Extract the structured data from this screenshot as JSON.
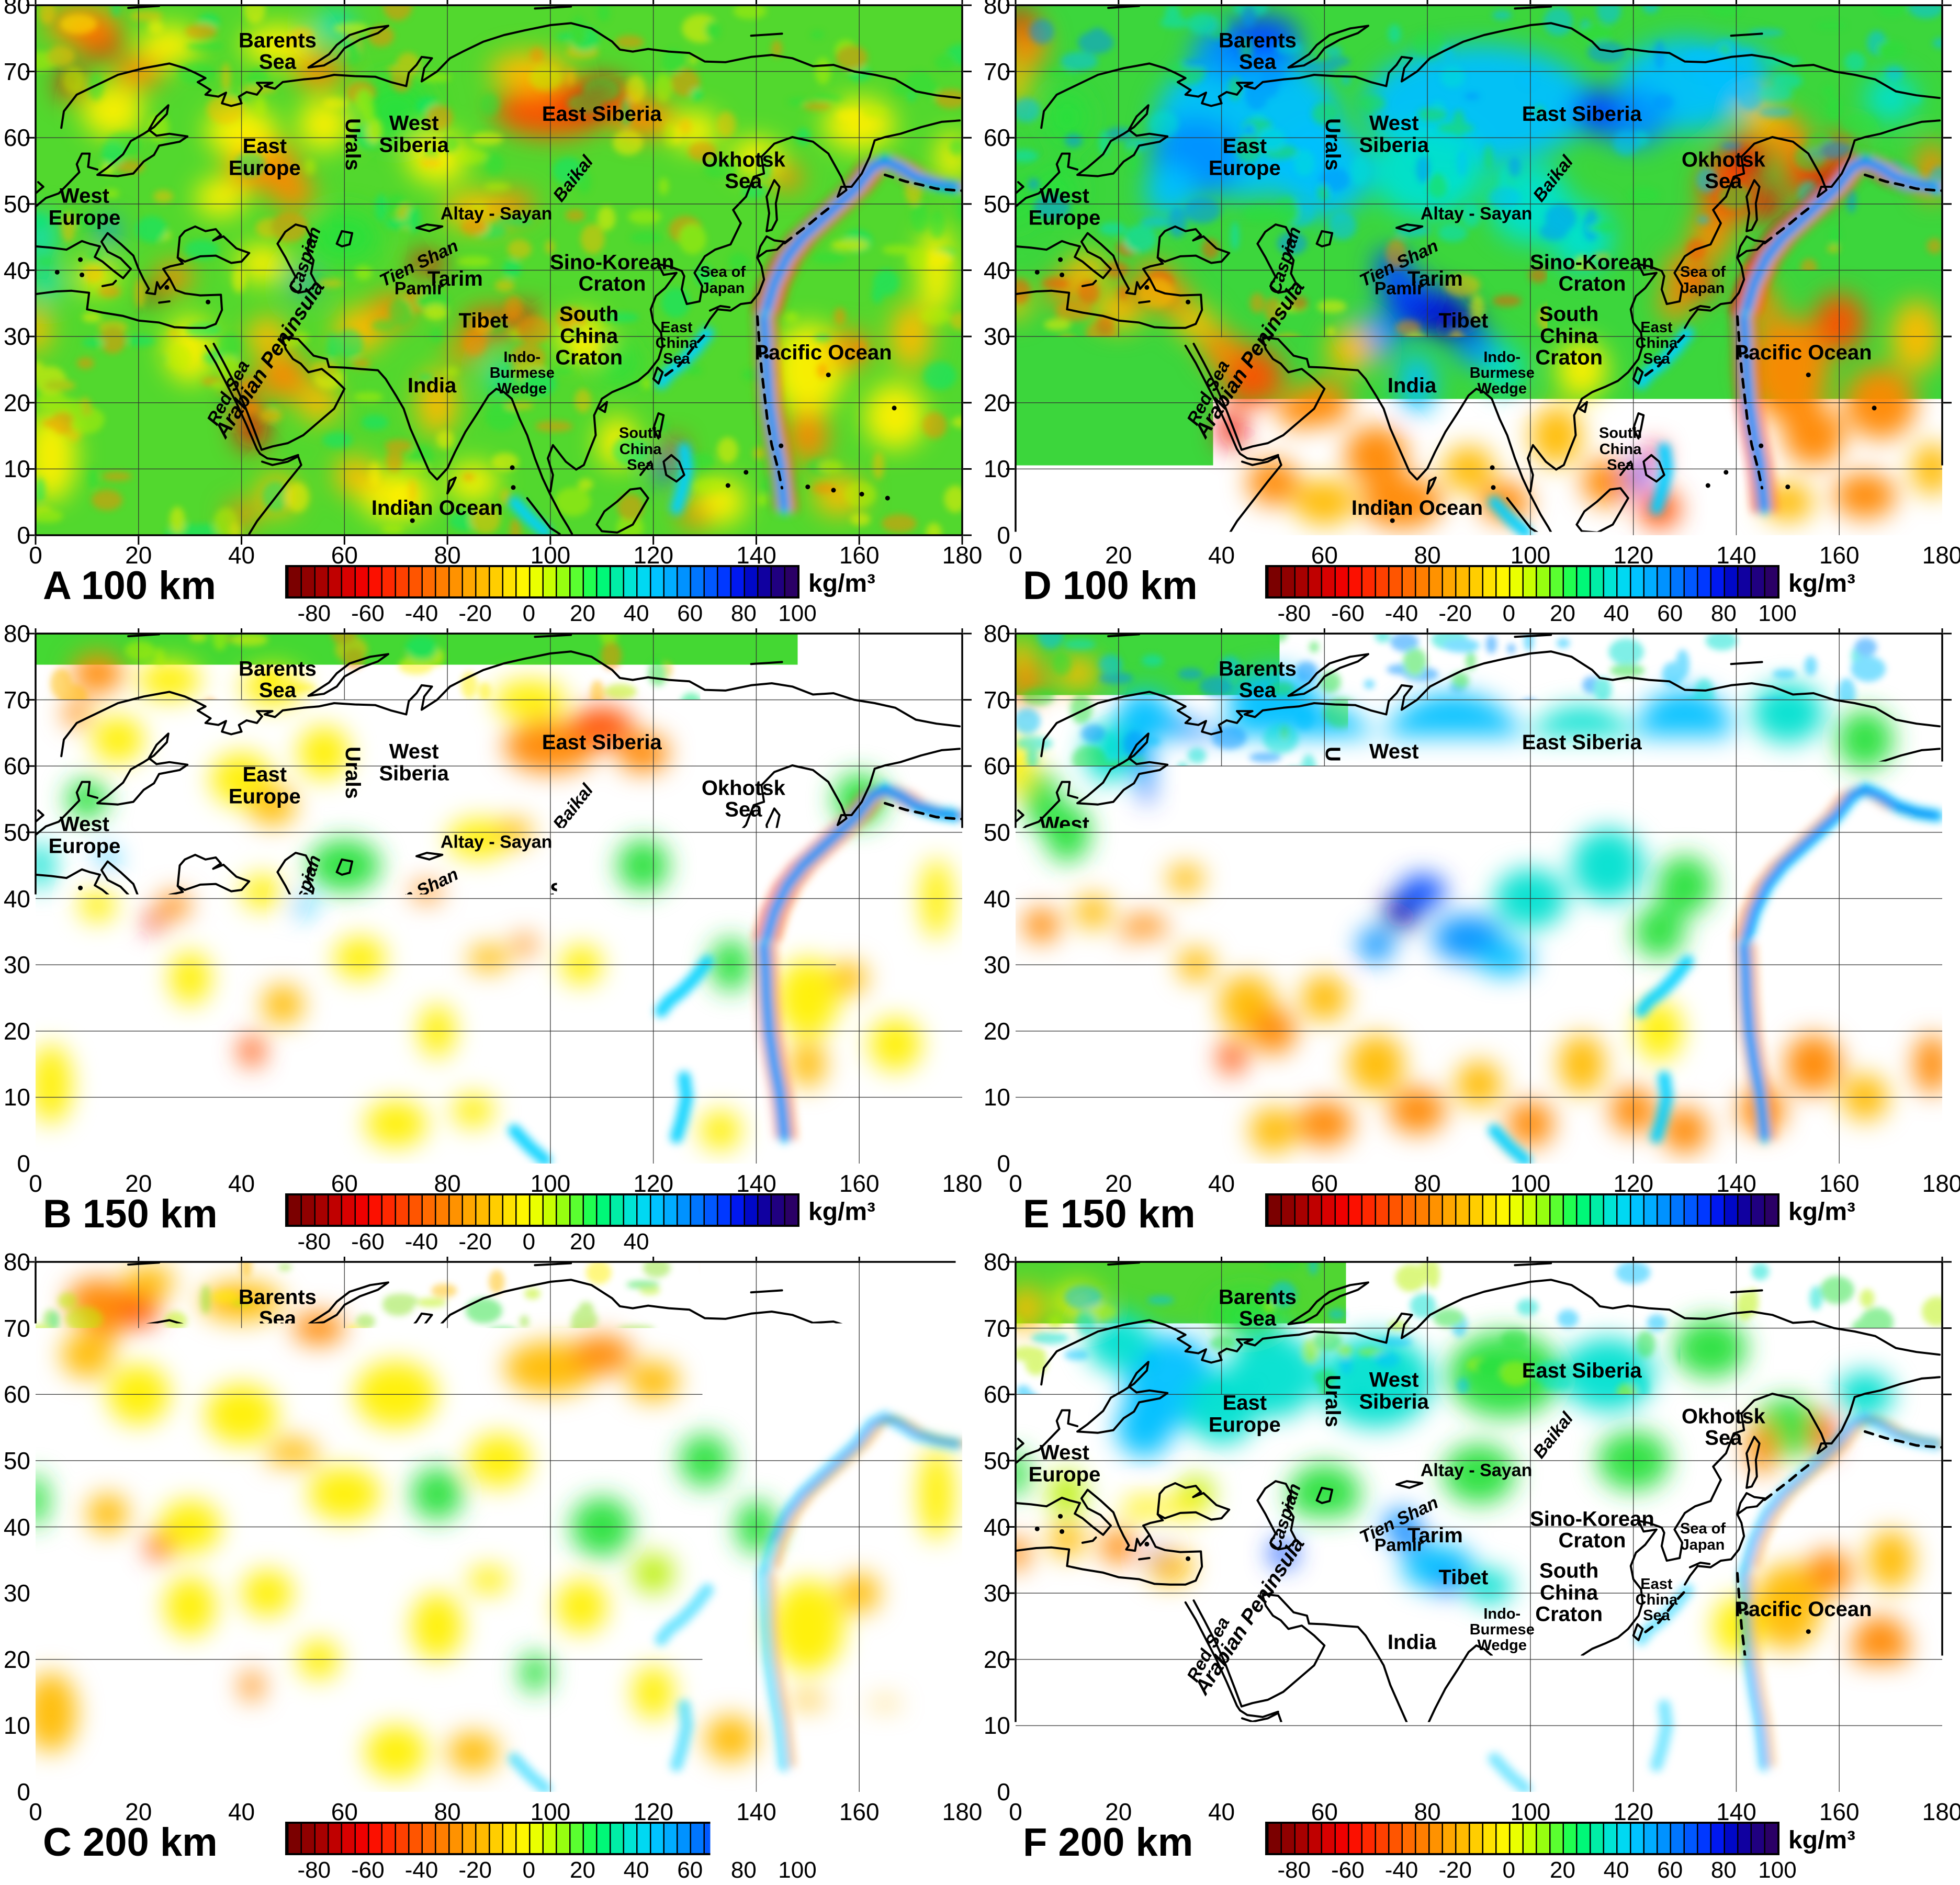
{
  "figure": {
    "unit_label": "kg/m³",
    "panels": [
      {
        "id": "A",
        "label": "A 100 km",
        "depth_km": 100
      },
      {
        "id": "D",
        "label": "D 100 km",
        "depth_km": 100
      },
      {
        "id": "B",
        "label": "B 150 km",
        "depth_km": 150
      },
      {
        "id": "E",
        "label": "E 150 km",
        "depth_km": 150
      },
      {
        "id": "C",
        "label": "C 200 km",
        "depth_km": 200
      },
      {
        "id": "F",
        "label": "F 200 km",
        "depth_km": 200
      }
    ],
    "axes": {
      "x_ticks": [
        "0",
        "20",
        "40",
        "60",
        "80",
        "100",
        "120",
        "140",
        "160",
        "180"
      ],
      "y_ticks": [
        "80",
        "70",
        "60",
        "50",
        "40",
        "30",
        "20",
        "10",
        "0"
      ]
    },
    "colorbar": {
      "tick_labels": [
        "-80",
        "-60",
        "-40",
        "-20",
        "0",
        "20",
        "40",
        "60",
        "80",
        "100"
      ],
      "range_min": -90,
      "range_max": 100,
      "n_cells": 38
    },
    "region_labels": [
      {
        "text": "Barents\nSea",
        "lon": 47,
        "lat": 73,
        "rot": 0,
        "size": "L",
        "italic": false
      },
      {
        "text": "East\nEurope",
        "lon": 44.5,
        "lat": 57,
        "rot": 0,
        "size": "L",
        "italic": false
      },
      {
        "text": "West\nEurope",
        "lon": 9.5,
        "lat": 49.5,
        "rot": 0,
        "size": "L",
        "italic": false
      },
      {
        "text": "Urals",
        "lon": 61.5,
        "lat": 59,
        "rot": 90,
        "size": "L",
        "italic": false
      },
      {
        "text": "West\nSiberia",
        "lon": 73.5,
        "lat": 60.5,
        "rot": 0,
        "size": "L",
        "italic": false
      },
      {
        "text": "East Siberia",
        "lon": 110,
        "lat": 63.5,
        "rot": 0,
        "size": "L",
        "italic": false
      },
      {
        "text": "Baikal",
        "lon": 104.5,
        "lat": 53.8,
        "rot": -52,
        "size": "M",
        "italic": true
      },
      {
        "text": "Okhotsk\nSea",
        "lon": 137.5,
        "lat": 55,
        "rot": 0,
        "size": "L",
        "italic": false
      },
      {
        "text": "Altay - Sayan",
        "lon": 89.5,
        "lat": 48.5,
        "rot": 0,
        "size": "M",
        "italic": false
      },
      {
        "text": "Tien Shan",
        "lon": 74.5,
        "lat": 41,
        "rot": -26,
        "size": "M",
        "italic": true
      },
      {
        "text": "Pamir",
        "lon": 74.5,
        "lat": 37.2,
        "rot": 0,
        "size": "M",
        "italic": false
      },
      {
        "text": "Tarim",
        "lon": 81.5,
        "lat": 38.6,
        "rot": 0,
        "size": "L",
        "italic": false
      },
      {
        "text": "Caspian",
        "lon": 52.3,
        "lat": 41.5,
        "rot": -72,
        "size": "M",
        "italic": true
      },
      {
        "text": "Sino-Korean\nCraton",
        "lon": 112,
        "lat": 39.5,
        "rot": 0,
        "size": "L",
        "italic": false
      },
      {
        "text": "Sea of\nJapan",
        "lon": 133.5,
        "lat": 38.5,
        "rot": 0,
        "size": "S",
        "italic": false
      },
      {
        "text": "Tibet",
        "lon": 87,
        "lat": 32.3,
        "rot": 0,
        "size": "L",
        "italic": false
      },
      {
        "text": "South\nChina\nCraton",
        "lon": 107.5,
        "lat": 30,
        "rot": 0,
        "size": "L",
        "italic": false
      },
      {
        "text": "East\nChina\nSea",
        "lon": 124.5,
        "lat": 29,
        "rot": 0,
        "size": "S",
        "italic": false
      },
      {
        "text": "Indo-\nBurmese\nWedge",
        "lon": 94.5,
        "lat": 24.5,
        "rot": 0,
        "size": "S",
        "italic": false
      },
      {
        "text": "India",
        "lon": 77,
        "lat": 22.5,
        "rot": 0,
        "size": "L",
        "italic": false
      },
      {
        "text": "Arabian Peninsula",
        "lon": 45.5,
        "lat": 26.5,
        "rot": -57,
        "size": "L",
        "italic": true
      },
      {
        "text": "Red Sea",
        "lon": 37.5,
        "lat": 21.5,
        "rot": -62,
        "size": "M",
        "italic": true
      },
      {
        "text": "South\nChina\nSea",
        "lon": 117.5,
        "lat": 13,
        "rot": 0,
        "size": "S",
        "italic": false
      },
      {
        "text": "Pacific Ocean",
        "lon": 153,
        "lat": 27.5,
        "rot": 0,
        "size": "L",
        "italic": false
      },
      {
        "text": "Indian Ocean",
        "lon": 78,
        "lat": 4,
        "rot": 0,
        "size": "L",
        "italic": false
      }
    ]
  },
  "chart_data": {
    "type": "heatmap",
    "unit": "kg/m³",
    "panels": [
      {
        "id": "A",
        "depth_km": 100,
        "label": "A 100 km",
        "summary": "green/yellow field; red-orange anomalies over Scandinavia, East Siberia, Greece, Red Sea, Tibet; cyan-blue low along Japan-Kuril-Kamchatka trench"
      },
      {
        "id": "D",
        "depth_km": 100,
        "label": "D 100 km",
        "summary": "strong blue/cyan highs over Barents Sea, East Europe, Siberia and a deep blue Tibet-Pamir anomaly; orange-red lows over Arabia, Okhotsk margin, Pacific and Indian Ocean"
      },
      {
        "id": "B",
        "depth_km": 150,
        "label": "B 150 km",
        "summary": "mostly green with weak orange over East Siberia and Scandinavia; cyan trench stripe along Japan-Kuril"
      },
      {
        "id": "E",
        "depth_km": 150,
        "label": "E 150 km",
        "summary": "cyan-blue high over East Europe and West Siberia, deep blue Pamir spot; yellow-orange southern oceans"
      },
      {
        "id": "C",
        "depth_km": 200,
        "label": "C 200 km",
        "summary": "muted yellow-green field with orange patches near Barents Sea, Scandinavia and East Siberia"
      },
      {
        "id": "F",
        "depth_km": 200,
        "label": "F 200 km",
        "summary": "green with cyan highs over East Europe-West Siberia and Tibet; yellow-orange oceans"
      }
    ],
    "x_axis": {
      "range": [
        0,
        180
      ],
      "ticks": [
        0,
        20,
        40,
        60,
        80,
        100,
        120,
        140,
        160,
        180
      ]
    },
    "y_axis": {
      "range": [
        0,
        80
      ],
      "ticks": [
        0,
        10,
        20,
        30,
        40,
        50,
        60,
        70,
        80
      ]
    },
    "colorbar": {
      "range": [
        -90,
        100
      ],
      "cell_size": 5,
      "tick_values": [
        -80,
        -60,
        -40,
        -20,
        0,
        20,
        40,
        60,
        80,
        100
      ],
      "unit": "kg/m³"
    }
  }
}
